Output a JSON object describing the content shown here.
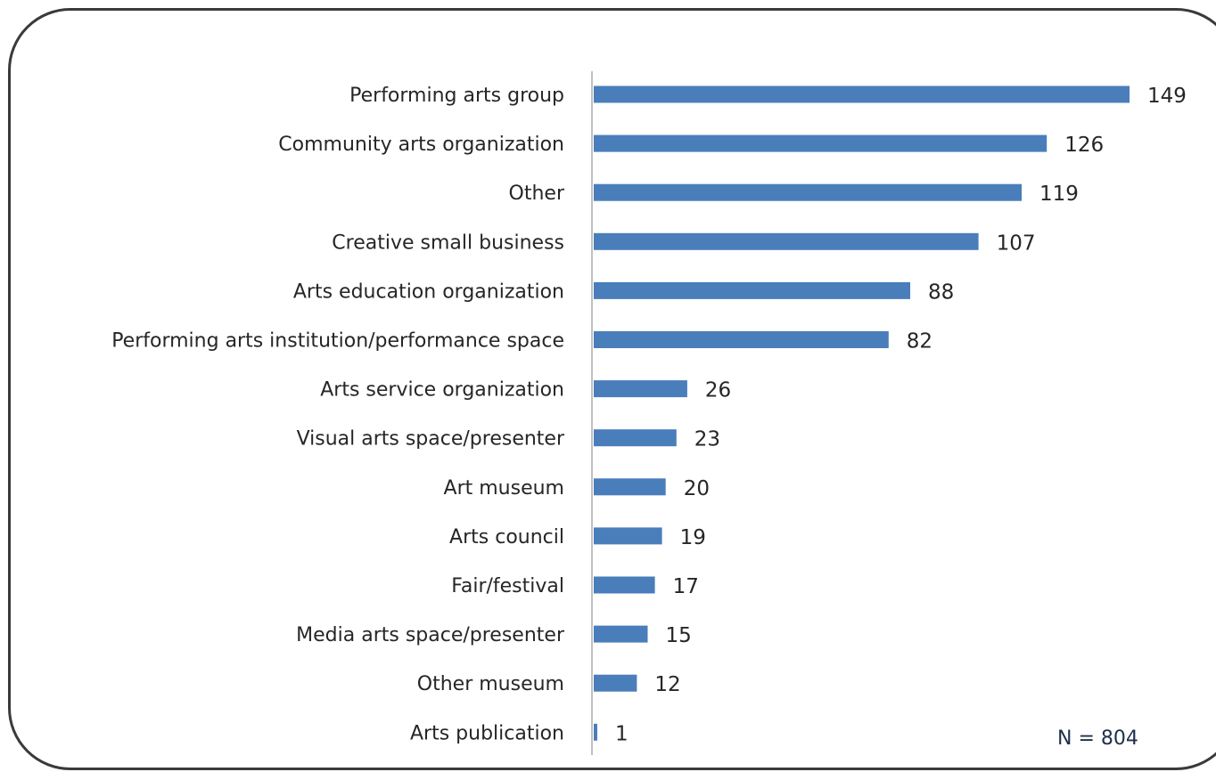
{
  "chart_data": {
    "type": "bar",
    "orientation": "horizontal",
    "categories": [
      "Performing arts group",
      "Community arts organization",
      "Other",
      "Creative small business",
      "Arts education organization",
      "Performing arts institution/performance space",
      "Arts service organization",
      "Visual arts space/presenter",
      "Art museum",
      "Arts council",
      "Fair/festival",
      "Media arts space/presenter",
      "Other museum",
      "Arts publication"
    ],
    "values": [
      149,
      126,
      119,
      107,
      88,
      82,
      26,
      23,
      20,
      19,
      17,
      15,
      12,
      1
    ],
    "data_labels": [
      "149",
      "126",
      "119",
      "107",
      "88",
      "82",
      "26",
      "23",
      "20",
      "19",
      "17",
      "15",
      "12",
      "1"
    ],
    "title": "",
    "xlabel": "",
    "ylabel": "",
    "xlim": [
      0,
      149
    ],
    "grid": false,
    "legend": "none",
    "bar_color": "#4a7ebb",
    "axis_color": "#c0c0c0",
    "note": "N = 804"
  }
}
